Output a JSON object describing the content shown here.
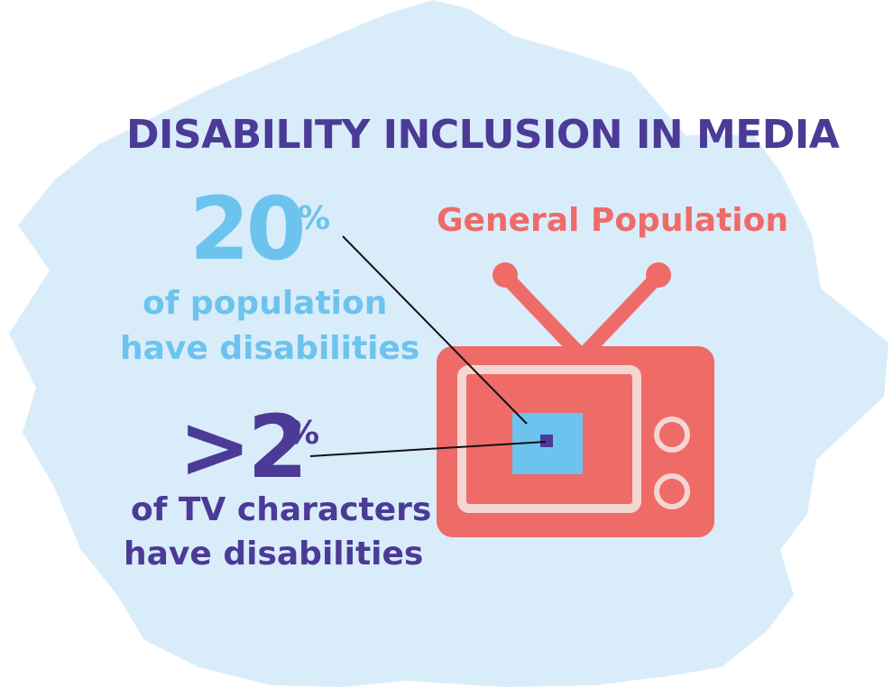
{
  "title": "DISABILITY INCLUSION IN MEDIA",
  "tv_label": "General Population",
  "population_stat": {
    "value": "20",
    "unit": "%",
    "line1": "of population",
    "line2": "have disabilities"
  },
  "tv_stat": {
    "value": ">2",
    "unit": "%",
    "line1": "of TV characters",
    "line2": "have disabilities"
  },
  "colors": {
    "background_burst": "#d9ecfa",
    "title_purple": "#4b3a96",
    "stat_blue": "#6cc3ee",
    "tv_coral": "#ef6b67",
    "tv_screen_frame": "#f7c9c5"
  },
  "icons": [
    "burst-background",
    "tv-icon"
  ]
}
